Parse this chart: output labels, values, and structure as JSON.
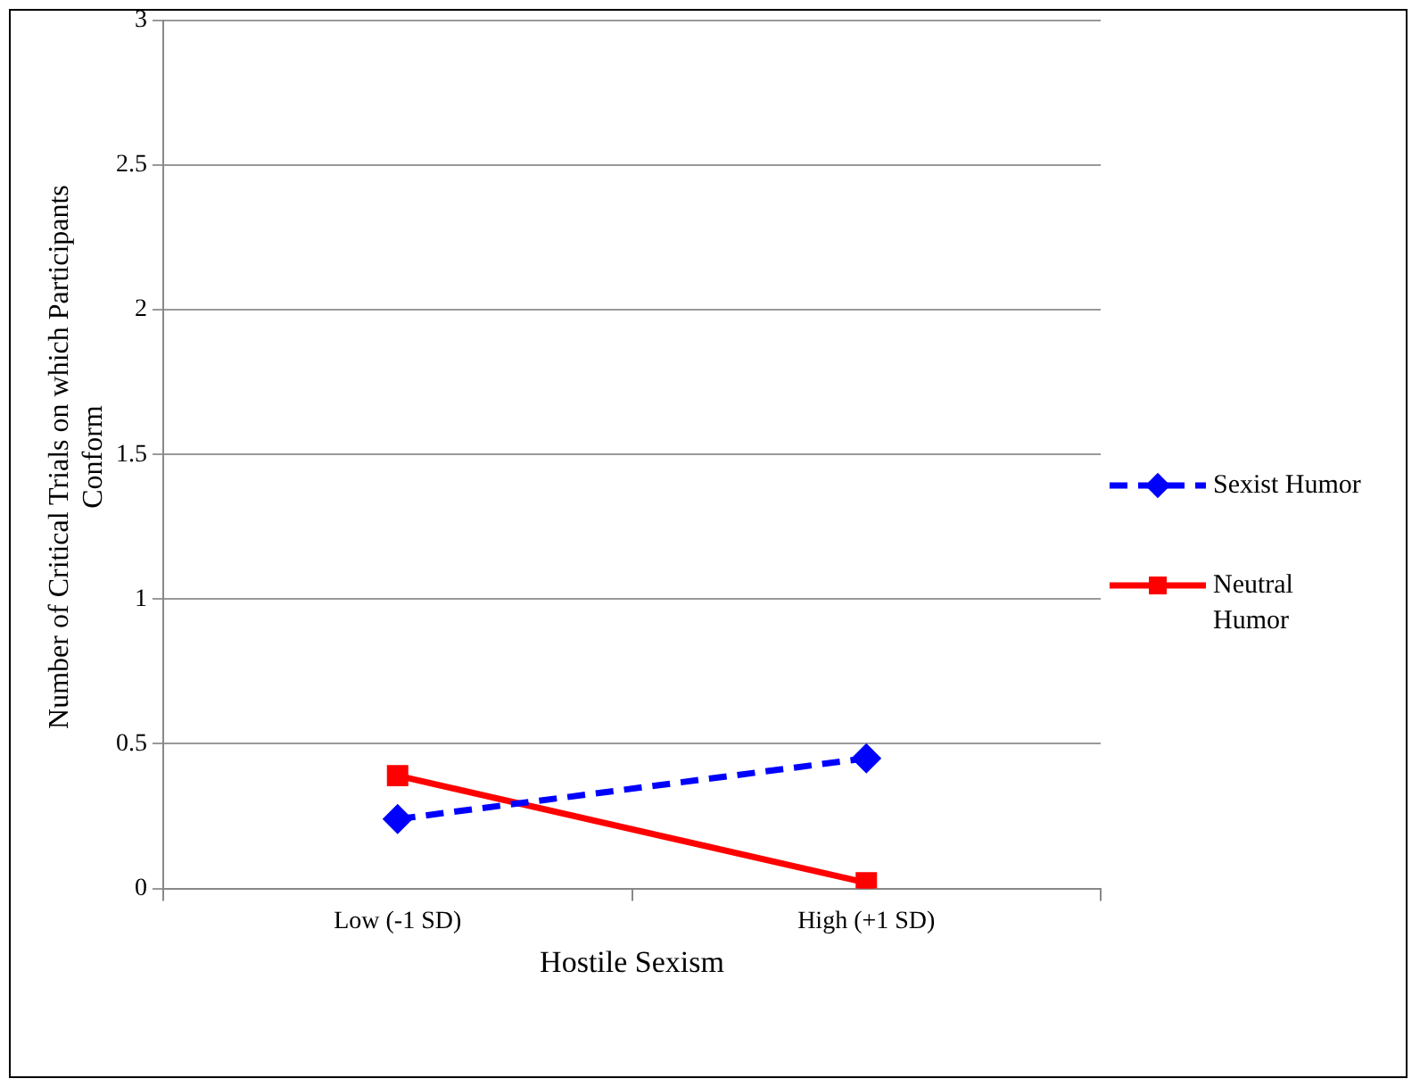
{
  "chart_data": {
    "type": "line",
    "xlabel": "Hostile Sexism",
    "ylabel": "Number of Critical Trials on which Participants Conform",
    "categories": [
      "Low (-1 SD)",
      "High (+1 SD)"
    ],
    "series": [
      {
        "name": "Sexist Humor",
        "color": "#0000ff",
        "values": [
          0.24,
          0.45
        ],
        "marker": "diamond",
        "line_style": "dashed"
      },
      {
        "name": "Neutral Humor",
        "color": "#ff0000",
        "values": [
          0.39,
          0.02
        ],
        "marker": "square",
        "line_style": "solid"
      }
    ],
    "ylim": [
      0,
      3
    ],
    "yticks": [
      0,
      0.5,
      1,
      1.5,
      2,
      2.5,
      3
    ],
    "grid": "y",
    "legend": "right"
  }
}
